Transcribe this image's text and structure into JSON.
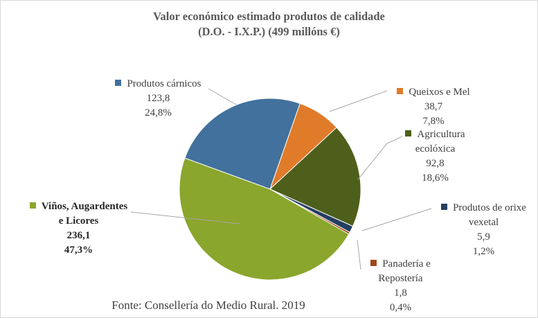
{
  "chart_data": {
    "type": "pie",
    "title": [
      "Valor económico estimado produtos de calidade",
      "(D.O. - I.X.P.) (499 millóns €)"
    ],
    "categories": [
      "Produtos cárnicos",
      "Queixos e Mel",
      "Agricultura ecolóxica",
      "Produtos de orixe vexetal",
      "Panadería e Repostería",
      "Viños, Augardentes e Licores"
    ],
    "values": [
      123.8,
      38.7,
      92.8,
      5.9,
      1.8,
      236.1
    ],
    "value_labels": [
      "123,8",
      "38,7",
      "92,8",
      "5,9",
      "1,8",
      "236,1"
    ],
    "percent_labels": [
      "24,8%",
      "7,8%",
      "18,6%",
      "1,2%",
      "0,4%",
      "47,3%"
    ],
    "colors": [
      "#41719c",
      "#e07b2a",
      "#4e5f1b",
      "#243f60",
      "#a0471b",
      "#8aa62d"
    ],
    "source": "Fonte: Consellería do Medio Rural. 2019"
  }
}
